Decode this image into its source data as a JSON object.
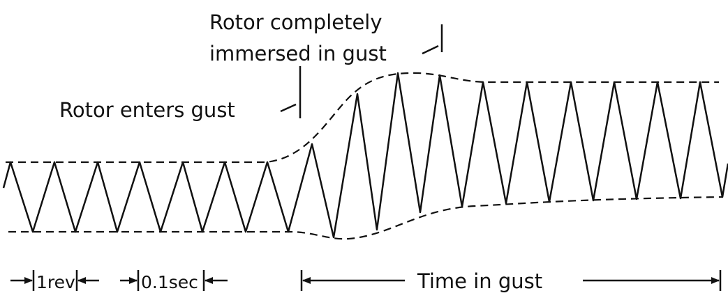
{
  "annotations": {
    "immersed_line1": "Rotor completely",
    "immersed_line2": "immersed in gust",
    "enters": "Rotor enters gust"
  },
  "scale": {
    "rev": "1rev",
    "time": "0.1sec",
    "gust": "Time in gust"
  }
}
